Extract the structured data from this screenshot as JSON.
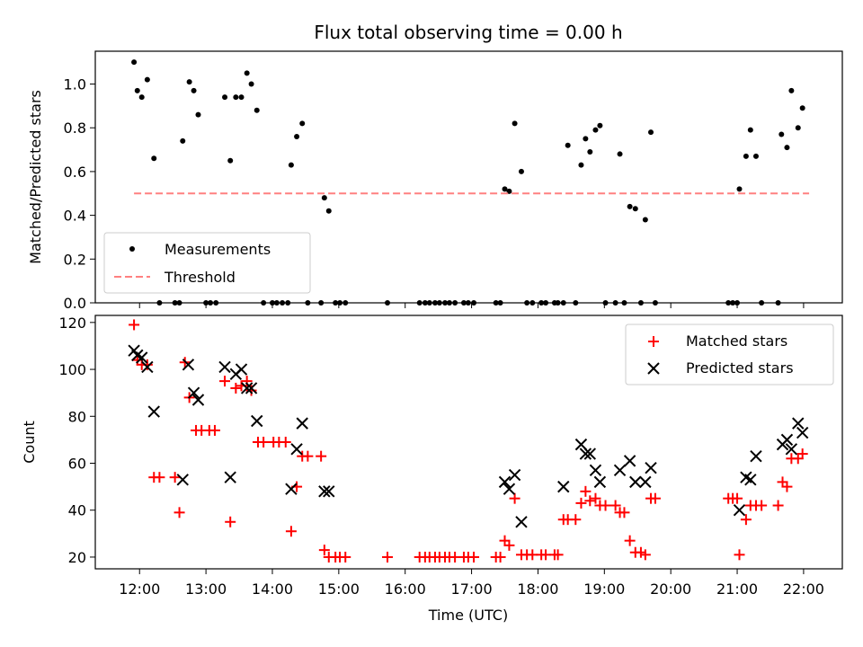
{
  "chart_data": [
    {
      "type": "scatter",
      "title": "Flux total observing time = 0.00 h",
      "xlabel": "",
      "ylabel": "Matched/Predicted stars",
      "xlim": [
        "11:20",
        "22:35"
      ],
      "ylim": [
        0,
        1.15
      ],
      "yticks": [
        0.0,
        0.2,
        0.4,
        0.6,
        0.8,
        1.0
      ],
      "ytick_labels": [
        "0.0",
        "0.2",
        "0.4",
        "0.6",
        "0.8",
        "1.0"
      ],
      "xticks": [
        "12:00",
        "13:00",
        "14:00",
        "15:00",
        "16:00",
        "17:00",
        "18:00",
        "19:00",
        "20:00",
        "21:00",
        "22:00"
      ],
      "xtick_labels_shown": false,
      "legend": {
        "position": "lower-left",
        "entries": [
          "Measurements",
          "Threshold"
        ]
      },
      "series": [
        {
          "name": "Measurements",
          "marker": "dot",
          "color": "#000000",
          "points": [
            [
              "11:55",
              1.1
            ],
            [
              "11:58",
              0.97
            ],
            [
              "12:02",
              0.94
            ],
            [
              "12:07",
              1.02
            ],
            [
              "12:13",
              0.66
            ],
            [
              "12:18",
              0.0
            ],
            [
              "12:32",
              0.0
            ],
            [
              "12:36",
              0.0
            ],
            [
              "12:39",
              0.74
            ],
            [
              "12:45",
              1.01
            ],
            [
              "12:49",
              0.97
            ],
            [
              "12:53",
              0.86
            ],
            [
              "13:00",
              0.0
            ],
            [
              "13:04",
              0.0
            ],
            [
              "13:09",
              0.0
            ],
            [
              "13:17",
              0.94
            ],
            [
              "13:22",
              0.65
            ],
            [
              "13:27",
              0.94
            ],
            [
              "13:32",
              0.94
            ],
            [
              "13:37",
              1.05
            ],
            [
              "13:41",
              1.0
            ],
            [
              "13:46",
              0.88
            ],
            [
              "13:52",
              0.0
            ],
            [
              "14:00",
              0.0
            ],
            [
              "14:04",
              0.0
            ],
            [
              "14:09",
              0.0
            ],
            [
              "14:14",
              0.0
            ],
            [
              "14:17",
              0.63
            ],
            [
              "14:22",
              0.76
            ],
            [
              "14:27",
              0.82
            ],
            [
              "14:32",
              0.0
            ],
            [
              "14:44",
              0.0
            ],
            [
              "14:47",
              0.48
            ],
            [
              "14:51",
              0.42
            ],
            [
              "14:57",
              0.0
            ],
            [
              "15:01",
              0.0
            ],
            [
              "15:06",
              0.0
            ],
            [
              "15:44",
              0.0
            ],
            [
              "16:13",
              0.0
            ],
            [
              "16:18",
              0.0
            ],
            [
              "16:22",
              0.0
            ],
            [
              "16:27",
              0.0
            ],
            [
              "16:31",
              0.0
            ],
            [
              "16:36",
              0.0
            ],
            [
              "16:40",
              0.0
            ],
            [
              "16:45",
              0.0
            ],
            [
              "16:53",
              0.0
            ],
            [
              "16:57",
              0.0
            ],
            [
              "17:02",
              0.0
            ],
            [
              "17:22",
              0.0
            ],
            [
              "17:26",
              0.0
            ],
            [
              "17:30",
              0.52
            ],
            [
              "17:34",
              0.51
            ],
            [
              "17:39",
              0.82
            ],
            [
              "17:45",
              0.6
            ],
            [
              "17:50",
              0.0
            ],
            [
              "17:55",
              0.0
            ],
            [
              "18:03",
              0.0
            ],
            [
              "18:07",
              0.0
            ],
            [
              "18:15",
              0.0
            ],
            [
              "18:18",
              0.0
            ],
            [
              "18:23",
              0.0
            ],
            [
              "18:27",
              0.72
            ],
            [
              "18:34",
              0.0
            ],
            [
              "18:39",
              0.63
            ],
            [
              "18:43",
              0.75
            ],
            [
              "18:47",
              0.69
            ],
            [
              "18:52",
              0.79
            ],
            [
              "18:56",
              0.81
            ],
            [
              "19:01",
              0.0
            ],
            [
              "19:10",
              0.0
            ],
            [
              "19:14",
              0.68
            ],
            [
              "19:18",
              0.0
            ],
            [
              "19:23",
              0.44
            ],
            [
              "19:28",
              0.43
            ],
            [
              "19:33",
              0.0
            ],
            [
              "19:37",
              0.38
            ],
            [
              "19:42",
              0.78
            ],
            [
              "19:46",
              0.0
            ],
            [
              "20:52",
              0.0
            ],
            [
              "20:56",
              0.0
            ],
            [
              "21:00",
              0.0
            ],
            [
              "21:02",
              0.52
            ],
            [
              "21:08",
              0.67
            ],
            [
              "21:12",
              0.79
            ],
            [
              "21:17",
              0.67
            ],
            [
              "21:22",
              0.0
            ],
            [
              "21:37",
              0.0
            ],
            [
              "21:40",
              0.77
            ],
            [
              "21:45",
              0.71
            ],
            [
              "21:49",
              0.97
            ],
            [
              "21:55",
              0.8
            ],
            [
              "21:59",
              0.89
            ]
          ]
        },
        {
          "name": "Threshold",
          "style": "dashed",
          "color": "#ff8080",
          "points": [
            [
              "11:55",
              0.5
            ],
            [
              "22:05",
              0.5
            ]
          ]
        }
      ]
    },
    {
      "type": "scatter",
      "title": "",
      "xlabel": "Time (UTC)",
      "ylabel": "Count",
      "xlim": [
        "11:20",
        "22:35"
      ],
      "ylim": [
        15,
        123
      ],
      "yticks": [
        20,
        40,
        60,
        80,
        100,
        120
      ],
      "ytick_labels": [
        "20",
        "40",
        "60",
        "80",
        "100",
        "120"
      ],
      "xticks": [
        "12:00",
        "13:00",
        "14:00",
        "15:00",
        "16:00",
        "17:00",
        "18:00",
        "19:00",
        "20:00",
        "21:00",
        "22:00"
      ],
      "xtick_labels": [
        "12:00",
        "13:00",
        "14:00",
        "15:00",
        "16:00",
        "17:00",
        "18:00",
        "19:00",
        "20:00",
        "21:00",
        "22:00"
      ],
      "legend": {
        "position": "top-right",
        "entries": [
          "Matched stars",
          "Predicted stars"
        ]
      },
      "series": [
        {
          "name": "Matched stars",
          "marker": "plus",
          "color": "#ff0000",
          "points": [
            [
              "11:55",
              119
            ],
            [
              "11:58",
              104
            ],
            [
              "12:02",
              102
            ],
            [
              "12:07",
              102
            ],
            [
              "12:13",
              54
            ],
            [
              "12:18",
              54
            ],
            [
              "12:32",
              54
            ],
            [
              "12:36",
              39
            ],
            [
              "12:41",
              103
            ],
            [
              "12:45",
              88
            ],
            [
              "12:51",
              74
            ],
            [
              "12:56",
              74
            ],
            [
              "13:03",
              74
            ],
            [
              "13:08",
              74
            ],
            [
              "13:17",
              95
            ],
            [
              "13:22",
              35
            ],
            [
              "13:27",
              92
            ],
            [
              "13:32",
              93
            ],
            [
              "13:37",
              95
            ],
            [
              "13:41",
              91
            ],
            [
              "13:47",
              69
            ],
            [
              "13:52",
              69
            ],
            [
              "14:01",
              69
            ],
            [
              "14:06",
              69
            ],
            [
              "14:12",
              69
            ],
            [
              "14:17",
              31
            ],
            [
              "14:22",
              50
            ],
            [
              "14:27",
              63
            ],
            [
              "14:32",
              63
            ],
            [
              "14:44",
              63
            ],
            [
              "14:47",
              23
            ],
            [
              "14:51",
              20
            ],
            [
              "14:57",
              20
            ],
            [
              "15:01",
              20
            ],
            [
              "15:06",
              20
            ],
            [
              "15:44",
              20
            ],
            [
              "16:13",
              20
            ],
            [
              "16:18",
              20
            ],
            [
              "16:22",
              20
            ],
            [
              "16:27",
              20
            ],
            [
              "16:31",
              20
            ],
            [
              "16:36",
              20
            ],
            [
              "16:40",
              20
            ],
            [
              "16:45",
              20
            ],
            [
              "16:53",
              20
            ],
            [
              "16:57",
              20
            ],
            [
              "17:02",
              20
            ],
            [
              "17:22",
              20
            ],
            [
              "17:26",
              20
            ],
            [
              "17:30",
              27
            ],
            [
              "17:34",
              25
            ],
            [
              "17:39",
              45
            ],
            [
              "17:45",
              21
            ],
            [
              "17:50",
              21
            ],
            [
              "17:55",
              21
            ],
            [
              "18:03",
              21
            ],
            [
              "18:07",
              21
            ],
            [
              "18:15",
              21
            ],
            [
              "18:18",
              21
            ],
            [
              "18:23",
              36
            ],
            [
              "18:27",
              36
            ],
            [
              "18:34",
              36
            ],
            [
              "18:39",
              43
            ],
            [
              "18:43",
              48
            ],
            [
              "18:47",
              44
            ],
            [
              "18:52",
              45
            ],
            [
              "18:56",
              42
            ],
            [
              "19:01",
              42
            ],
            [
              "19:10",
              42
            ],
            [
              "19:14",
              39
            ],
            [
              "19:18",
              39
            ],
            [
              "19:23",
              27
            ],
            [
              "19:28",
              22
            ],
            [
              "19:33",
              22
            ],
            [
              "19:37",
              21
            ],
            [
              "19:42",
              45
            ],
            [
              "19:46",
              45
            ],
            [
              "20:52",
              45
            ],
            [
              "20:56",
              45
            ],
            [
              "21:00",
              45
            ],
            [
              "21:02",
              21
            ],
            [
              "21:08",
              36
            ],
            [
              "21:12",
              42
            ],
            [
              "21:17",
              42
            ],
            [
              "21:22",
              42
            ],
            [
              "21:37",
              42
            ],
            [
              "21:41",
              52
            ],
            [
              "21:45",
              50
            ],
            [
              "21:49",
              62
            ],
            [
              "21:55",
              62
            ],
            [
              "21:59",
              64
            ]
          ]
        },
        {
          "name": "Predicted stars",
          "marker": "x",
          "color": "#000000",
          "points": [
            [
              "11:55",
              108
            ],
            [
              "11:58",
              106
            ],
            [
              "12:02",
              105
            ],
            [
              "12:07",
              101
            ],
            [
              "12:13",
              82
            ],
            [
              "12:39",
              53
            ],
            [
              "12:44",
              102
            ],
            [
              "12:49",
              90
            ],
            [
              "12:53",
              87
            ],
            [
              "13:17",
              101
            ],
            [
              "13:22",
              54
            ],
            [
              "13:27",
              98
            ],
            [
              "13:32",
              100
            ],
            [
              "13:37",
              92
            ],
            [
              "13:41",
              92
            ],
            [
              "13:46",
              78
            ],
            [
              "14:17",
              49
            ],
            [
              "14:22",
              66
            ],
            [
              "14:27",
              77
            ],
            [
              "14:47",
              48
            ],
            [
              "14:51",
              48
            ],
            [
              "17:30",
              52
            ],
            [
              "17:34",
              49
            ],
            [
              "17:39",
              55
            ],
            [
              "17:45",
              35
            ],
            [
              "18:23",
              50
            ],
            [
              "18:39",
              68
            ],
            [
              "18:43",
              64
            ],
            [
              "18:47",
              64
            ],
            [
              "18:52",
              57
            ],
            [
              "18:56",
              52
            ],
            [
              "19:14",
              57
            ],
            [
              "19:23",
              61
            ],
            [
              "19:28",
              52
            ],
            [
              "19:37",
              52
            ],
            [
              "19:42",
              58
            ],
            [
              "21:02",
              40
            ],
            [
              "21:08",
              54
            ],
            [
              "21:12",
              53
            ],
            [
              "21:17",
              63
            ],
            [
              "21:41",
              68
            ],
            [
              "21:45",
              70
            ],
            [
              "21:49",
              66
            ],
            [
              "21:55",
              77
            ],
            [
              "21:59",
              73
            ]
          ]
        }
      ]
    }
  ]
}
